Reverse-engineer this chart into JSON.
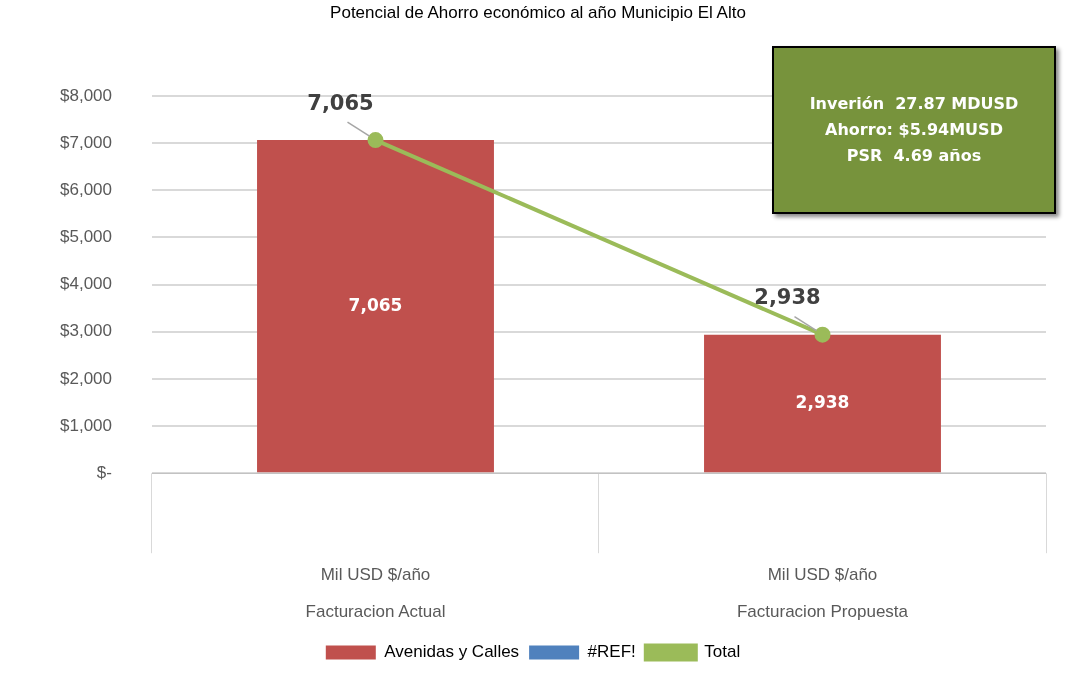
{
  "chart_data": {
    "type": "bar",
    "title": "Potencial de Ahorro económico al año Municipio El Alto",
    "categories": [
      "Mil USD $/año\nFacturacion Actual",
      "Mil USD $/año\nFacturacion Propuesta"
    ],
    "series": [
      {
        "name": "Avenidas y Calles",
        "color": "#c0504d",
        "values": [
          7065,
          2938
        ],
        "value_labels": [
          "7,065",
          "2,938"
        ]
      },
      {
        "name": "#REF!",
        "color": "#4f81bd",
        "values": [
          null,
          null
        ]
      },
      {
        "name": "Total",
        "type": "line",
        "color": "#9bbb59",
        "values": [
          7065,
          2938
        ],
        "value_labels": [
          "7,065",
          "2,938"
        ]
      }
    ],
    "ylim": [
      0,
      8000
    ],
    "yticks": [
      {
        "value": 0,
        "label": "$-"
      },
      {
        "value": 1000,
        "label": "$1,000"
      },
      {
        "value": 2000,
        "label": "$2,000"
      },
      {
        "value": 3000,
        "label": "$3,000"
      },
      {
        "value": 4000,
        "label": "$4,000"
      },
      {
        "value": 5000,
        "label": "$5,000"
      },
      {
        "value": 6000,
        "label": "$6,000"
      },
      {
        "value": 7000,
        "label": "$7,000"
      },
      {
        "value": 8000,
        "label": "$8,000"
      }
    ],
    "annotations": [
      "Inverión  27.87 MDUSD\nAhorro: $5.94MUSD\nPSR  4.69 años"
    ],
    "grid": "y",
    "legend": "bottom",
    "marker": "circle",
    "line_style": "solid"
  }
}
